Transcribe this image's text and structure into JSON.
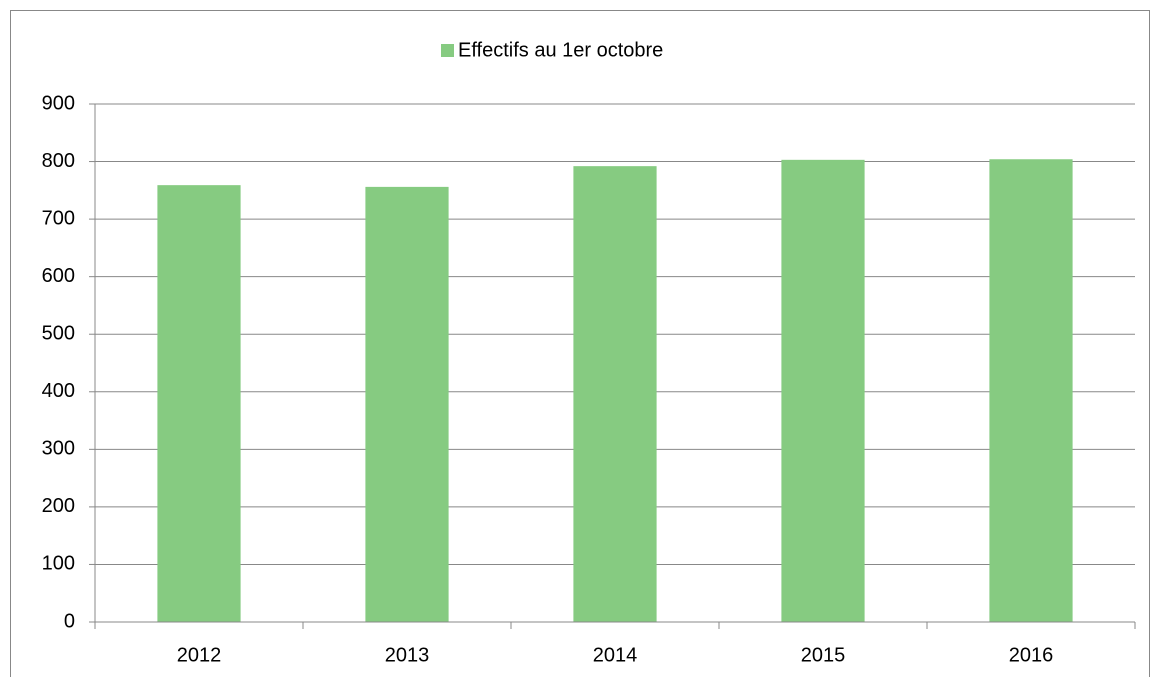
{
  "chart_data": {
    "type": "bar",
    "categories": [
      "2012",
      "2013",
      "2014",
      "2015",
      "2016"
    ],
    "series": [
      {
        "name": "Effectifs au 1er octobre",
        "color": "#86cb81",
        "values": [
          759,
          756,
          792,
          803,
          804
        ]
      }
    ],
    "ylim": [
      0,
      900
    ],
    "yticks": [
      0,
      100,
      200,
      300,
      400,
      500,
      600,
      700,
      800,
      900
    ],
    "grid": true,
    "legend": "top"
  }
}
